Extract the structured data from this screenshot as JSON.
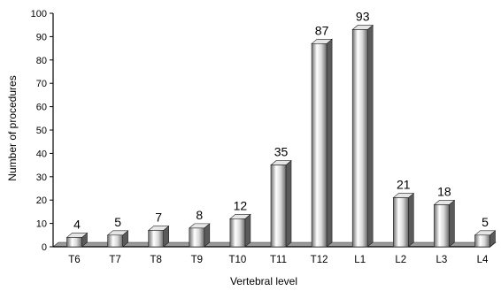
{
  "chart_data": {
    "type": "bar",
    "style": "3d-cylinder",
    "categories": [
      "T6",
      "T7",
      "T8",
      "T9",
      "T10",
      "T11",
      "T12",
      "L1",
      "L2",
      "L3",
      "L4"
    ],
    "values": [
      4,
      5,
      7,
      8,
      12,
      35,
      87,
      93,
      21,
      18,
      5
    ],
    "data_labels": [
      "4",
      "5",
      "7",
      "8",
      "12",
      "35",
      "87",
      "93",
      "21",
      "18",
      "5"
    ],
    "xlabel": "Vertebral level",
    "ylabel": "Number of procedures",
    "ylim": [
      0,
      100
    ],
    "yticks": [
      0,
      10,
      20,
      30,
      40,
      50,
      60,
      70,
      80,
      90,
      100
    ],
    "grid": false,
    "legend": "none",
    "colors": {
      "bar_light": "#ffffff",
      "bar_mid": "#c8c8c8",
      "bar_dark": "#5a5a5a",
      "floor": "#9a9a9a",
      "axis": "#000000"
    }
  }
}
